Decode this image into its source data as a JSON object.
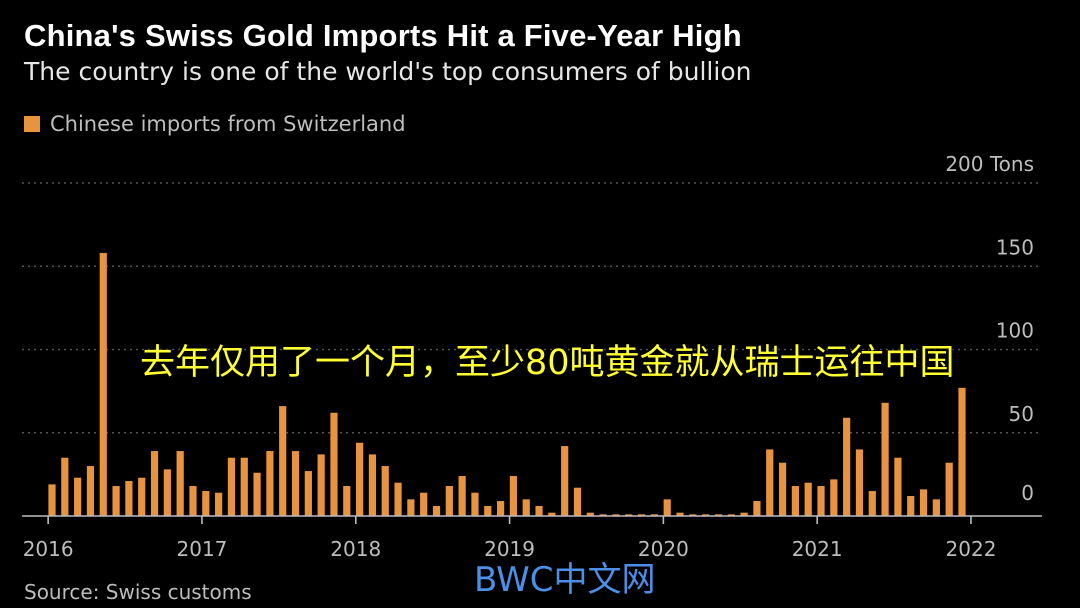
{
  "title": "China's Swiss Gold Imports Hit a Five-Year High",
  "subtitle": "The country is one of the world's top consumers of bullion",
  "legend_label": "Chinese imports from Switzerland",
  "source": "Source: Swiss customs",
  "watermark": "BWC中文网",
  "caption": "去年仅用了一个月，至少80吨黄金就从瑞士运往中国",
  "colors": {
    "bar": "#e8933f",
    "background": "#000000",
    "grid": "#555555",
    "axis": "#bdbdbd"
  },
  "chart_data": {
    "type": "bar",
    "title": "China's Swiss Gold Imports Hit a Five-Year High",
    "series_name": "Chinese imports from Switzerland",
    "unit": "Tons",
    "ylim": [
      0,
      200
    ],
    "y_ticks": [
      {
        "value": 0,
        "label": "0"
      },
      {
        "value": 50,
        "label": "50"
      },
      {
        "value": 100,
        "label": "100"
      },
      {
        "value": 150,
        "label": "150"
      },
      {
        "value": 200,
        "label": "200 Tons"
      }
    ],
    "x_tick_labels": [
      {
        "label": "2016",
        "month_index": 0
      },
      {
        "label": "2017",
        "month_index": 12
      },
      {
        "label": "2018",
        "month_index": 24
      },
      {
        "label": "2019",
        "month_index": 36
      },
      {
        "label": "2020",
        "month_index": 48
      },
      {
        "label": "2021",
        "month_index": 60
      },
      {
        "label": "2022",
        "month_index": 72
      }
    ],
    "start": "2016-01",
    "values": [
      19,
      35,
      23,
      30,
      158,
      18,
      21,
      23,
      39,
      28,
      39,
      18,
      15,
      14,
      35,
      35,
      26,
      39,
      66,
      39,
      27,
      37,
      62,
      18,
      44,
      37,
      30,
      20,
      10,
      14,
      6,
      18,
      24,
      14,
      6,
      9,
      24,
      10,
      6,
      2,
      42,
      17,
      2,
      1,
      1,
      1,
      1,
      1,
      10,
      2,
      1,
      1,
      1,
      1,
      2,
      9,
      40,
      32,
      18,
      20,
      18,
      22,
      59,
      40,
      15,
      68,
      35,
      12,
      16,
      10,
      32,
      77
    ]
  }
}
